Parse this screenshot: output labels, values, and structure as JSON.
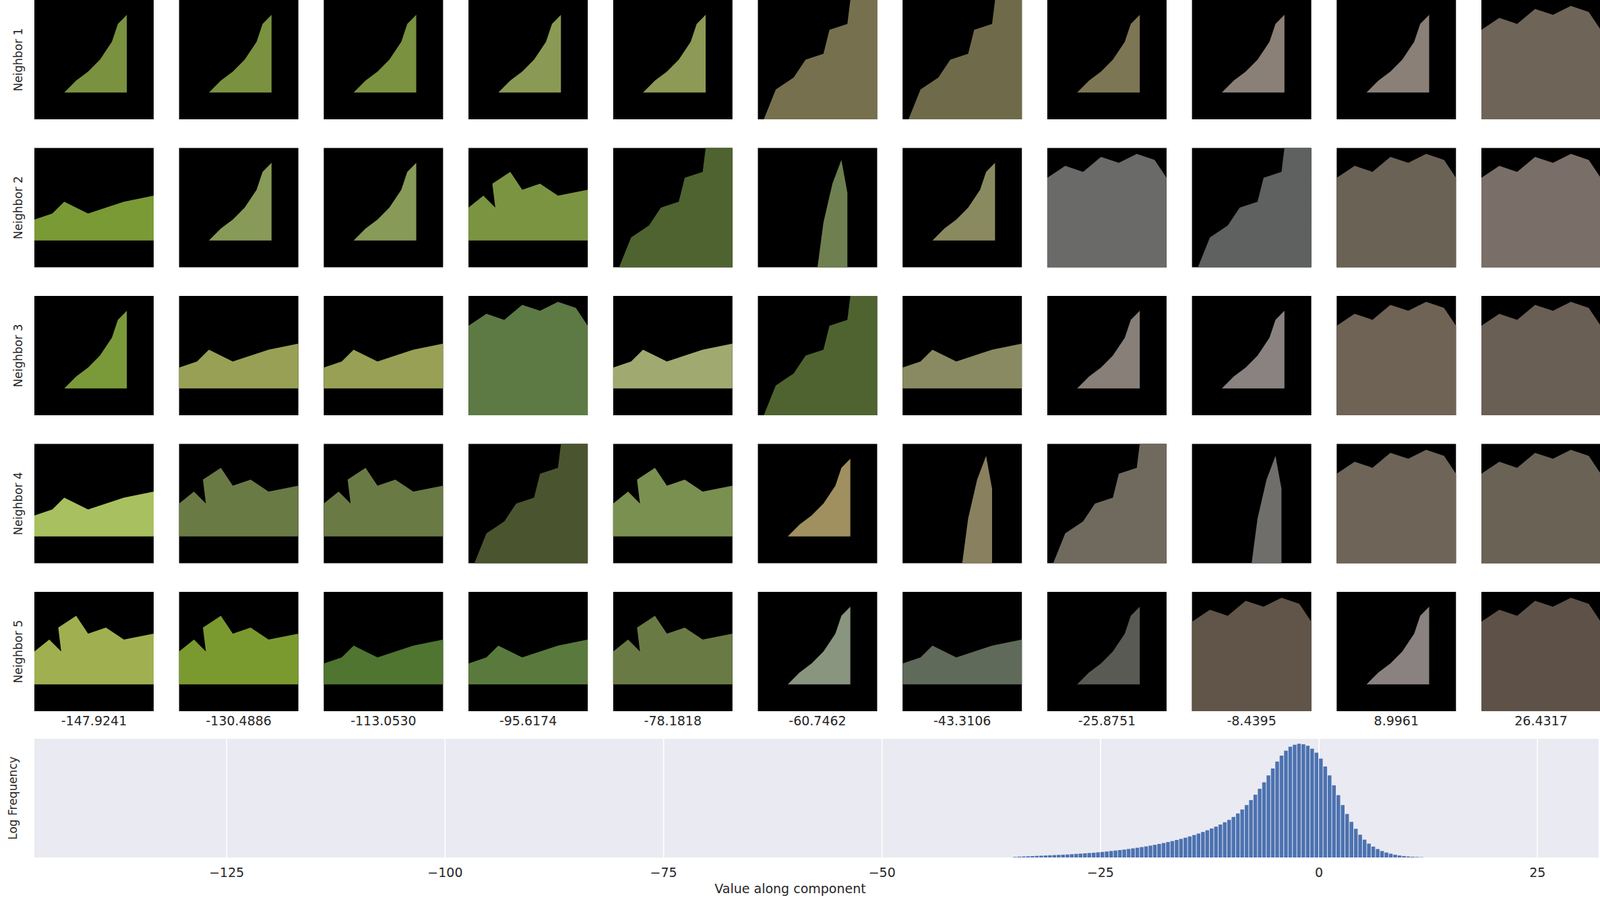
{
  "image_grid": {
    "row_labels": [
      "Neighbor 1",
      "Neighbor 2",
      "Neighbor 3",
      "Neighbor 4",
      "Neighbor 5"
    ],
    "column_labels": [
      "-147.9241",
      "-130.4886",
      "-113.0530",
      "-95.6174",
      "-78.1818",
      "-60.7462",
      "-43.3106",
      "-25.8751",
      "-8.4395",
      "8.9961",
      "26.4317"
    ]
  },
  "chart_data": {
    "type": "histogram",
    "x_label": "Value along component",
    "y_label": "Log Frequency",
    "bins": [
      -35,
      -34.5,
      -34,
      -33.5,
      -33,
      -32.5,
      -32,
      -31.5,
      -31,
      -30.5,
      -30,
      -29.5,
      -29,
      -28.5,
      -28,
      -27.5,
      -27,
      -26.5,
      -26,
      -25.5,
      -25,
      -24.5,
      -24,
      -23.5,
      -23,
      -22.5,
      -22,
      -21.5,
      -21,
      -20.5,
      -20,
      -19.5,
      -19,
      -18.5,
      -18,
      -17.5,
      -17,
      -16.5,
      -16,
      -15.5,
      -15,
      -14.5,
      -14,
      -13.5,
      -13,
      -12.5,
      -12,
      -11.5,
      -11,
      -10.5,
      -10,
      -9.5,
      -9,
      -8.5,
      -8,
      -7.5,
      -7,
      -6.5,
      -6,
      -5.5,
      -5,
      -4.5,
      -4,
      -3.5,
      -3,
      -2.5,
      -2,
      -1.5,
      -1,
      -0.5,
      0,
      0.5,
      1,
      1.5,
      2,
      2.5,
      3,
      3.5,
      4,
      4.5,
      5,
      5.5,
      6,
      6.5,
      7,
      7.5,
      8,
      8.5,
      9,
      9.5,
      10,
      10.5,
      11,
      11.5,
      12
    ],
    "values": [
      0.05,
      0.08,
      0.1,
      0.12,
      0.14,
      0.16,
      0.18,
      0.2,
      0.22,
      0.24,
      0.26,
      0.28,
      0.3,
      0.33,
      0.36,
      0.39,
      0.42,
      0.45,
      0.48,
      0.52,
      0.56,
      0.6,
      0.65,
      0.7,
      0.75,
      0.8,
      0.86,
      0.92,
      0.98,
      1.05,
      1.12,
      1.2,
      1.28,
      1.37,
      1.46,
      1.56,
      1.66,
      1.77,
      1.88,
      2.0,
      2.13,
      2.27,
      2.42,
      2.58,
      2.75,
      2.93,
      3.12,
      3.33,
      3.56,
      3.8,
      4.1,
      4.45,
      4.85,
      5.3,
      5.8,
      6.35,
      6.95,
      7.6,
      8.3,
      9.0,
      9.7,
      10.3,
      10.8,
      11.2,
      11.4,
      11.5,
      11.45,
      11.3,
      11.0,
      10.6,
      10.0,
      9.2,
      8.3,
      7.3,
      6.3,
      5.3,
      4.4,
      3.6,
      2.9,
      2.3,
      1.8,
      1.4,
      1.1,
      0.85,
      0.65,
      0.5,
      0.38,
      0.28,
      0.2,
      0.14,
      0.1,
      0.07,
      0.05,
      0.03
    ],
    "color": "#4c72b0",
    "xlim": [
      -147,
      32
    ],
    "ylim": [
      0,
      12
    ],
    "xticks": [
      {
        "value": -125,
        "label": "−125"
      },
      {
        "value": -100,
        "label": "−100"
      },
      {
        "value": -75,
        "label": "−75"
      },
      {
        "value": -50,
        "label": "−50"
      },
      {
        "value": -25,
        "label": "−25"
      },
      0,
      25
    ],
    "grid": true,
    "tick_labels": "x"
  }
}
